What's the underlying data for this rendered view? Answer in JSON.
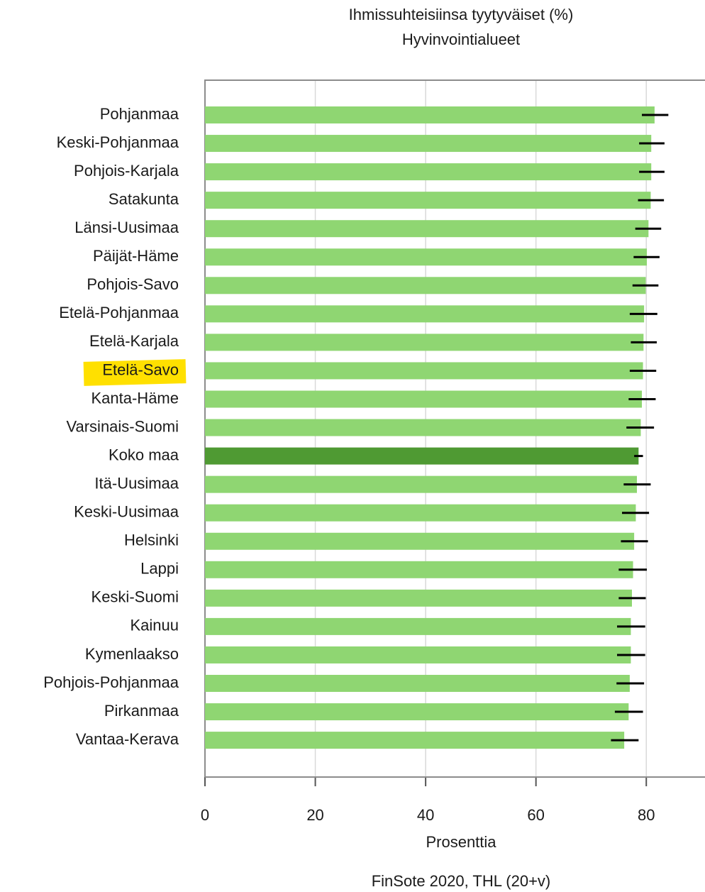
{
  "chart_data": {
    "type": "bar",
    "orientation": "horizontal",
    "title": "Ihmissuhteisiinsa tyytyväiset (%)",
    "subtitle": "Hyvinvointialueet",
    "x_label": "Prosenttia",
    "source": "FinSote 2020, THL (20+v)",
    "categories": [
      "Pohjanmaa",
      "Keski-Pohjanmaa",
      "Pohjois-Karjala",
      "Satakunta",
      "Länsi-Uusimaa",
      "Päijät-Häme",
      "Pohjois-Savo",
      "Etelä-Pohjanmaa",
      "Etelä-Karjala",
      "Etelä-Savo",
      "Kanta-Häme",
      "Varsinais-Suomi",
      "Koko maa",
      "Itä-Uusimaa",
      "Keski-Uusimaa",
      "Helsinki",
      "Lappi",
      "Keski-Suomi",
      "Kainuu",
      "Kymenlaakso",
      "Pohjois-Pohjanmaa",
      "Pirkanmaa",
      "Vantaa-Kerava"
    ],
    "values": [
      81.5,
      80.9,
      80.9,
      80.8,
      80.4,
      80.1,
      79.9,
      79.6,
      79.5,
      79.4,
      79.2,
      79.0,
      78.6,
      78.3,
      78.1,
      77.8,
      77.6,
      77.4,
      77.2,
      77.2,
      77.0,
      76.8,
      76.0
    ],
    "ci_low": [
      79.2,
      78.7,
      78.7,
      78.5,
      78.0,
      77.7,
      77.5,
      77.0,
      77.2,
      77.0,
      76.8,
      76.4,
      77.8,
      75.9,
      75.6,
      75.4,
      75.0,
      75.0,
      74.7,
      74.7,
      74.6,
      74.3,
      73.6
    ],
    "ci_high": [
      84.0,
      83.3,
      83.3,
      83.2,
      82.7,
      82.4,
      82.2,
      82.0,
      81.9,
      81.8,
      81.7,
      81.4,
      79.4,
      80.8,
      80.5,
      80.3,
      80.1,
      79.9,
      79.8,
      79.8,
      79.6,
      79.4,
      78.6
    ],
    "colors": [
      "#8fd672",
      "#8fd672",
      "#8fd672",
      "#8fd672",
      "#8fd672",
      "#8fd672",
      "#8fd672",
      "#8fd672",
      "#8fd672",
      "#8fd672",
      "#8fd672",
      "#8fd672",
      "#4f9a33",
      "#8fd672",
      "#8fd672",
      "#8fd672",
      "#8fd672",
      "#8fd672",
      "#8fd672",
      "#8fd672",
      "#8fd672",
      "#8fd672",
      "#8fd672"
    ],
    "error_color": "#000000",
    "xlim": [
      0,
      90
    ],
    "xticks": [
      0,
      20,
      40,
      60,
      80
    ],
    "grid": true
  }
}
